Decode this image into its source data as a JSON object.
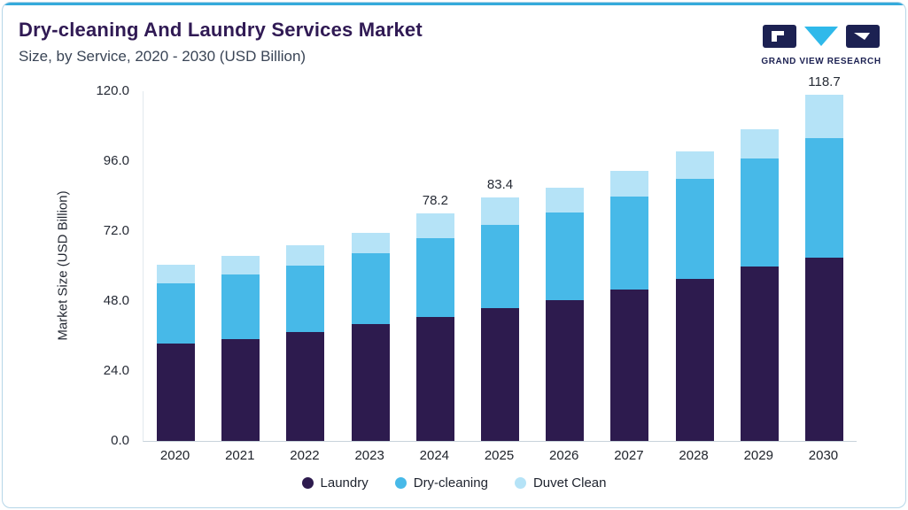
{
  "header": {
    "title": "Dry-cleaning And Laundry Services Market",
    "subtitle": "Size, by Service, 2020 - 2030 (USD Billion)"
  },
  "brand": {
    "name": "GRAND VIEW RESEARCH"
  },
  "chart_data": {
    "type": "bar",
    "stacked": true,
    "title": "Dry-cleaning And Laundry Services Market Size, by Service, 2020 - 2030 (USD Billion)",
    "ylabel": "Market Size (USD Billion)",
    "xlabel": "",
    "ylim": [
      0,
      120
    ],
    "yticks": [
      0,
      24,
      48,
      72,
      96,
      120
    ],
    "ytick_labels": [
      "0.0",
      "24.0",
      "48.0",
      "72.0",
      "96.0",
      "120.0"
    ],
    "grid": false,
    "legend_position": "bottom",
    "categories": [
      "2020",
      "2021",
      "2022",
      "2023",
      "2024",
      "2025",
      "2026",
      "2027",
      "2028",
      "2029",
      "2030"
    ],
    "series": [
      {
        "name": "Laundry",
        "color": "#2d1b4e",
        "values": [
          33.5,
          35.0,
          37.5,
          40.0,
          42.5,
          45.5,
          48.3,
          52.0,
          55.5,
          60.0,
          63.0
        ]
      },
      {
        "name": "Dry-cleaning",
        "color": "#47b9e8",
        "values": [
          20.5,
          22.0,
          22.8,
          24.3,
          27.2,
          28.6,
          30.0,
          32.0,
          34.5,
          37.0,
          41.0
        ]
      },
      {
        "name": "Duvet Clean",
        "color": "#b5e3f7",
        "values": [
          6.5,
          6.5,
          6.7,
          7.2,
          8.5,
          9.3,
          8.7,
          8.8,
          9.3,
          9.8,
          14.7
        ]
      }
    ],
    "bar_total_labels": [
      "",
      "",
      "",
      "",
      "78.2",
      "83.4",
      "",
      "",
      "",
      "",
      "118.7"
    ]
  },
  "colors": {
    "accent_line": "#35aadb",
    "card_border": "#b5d6e8",
    "title_color": "#301a54",
    "axis_text": "#262b36",
    "brand_navy": "#1c2152",
    "brand_cyan": "#2fb9ea"
  }
}
